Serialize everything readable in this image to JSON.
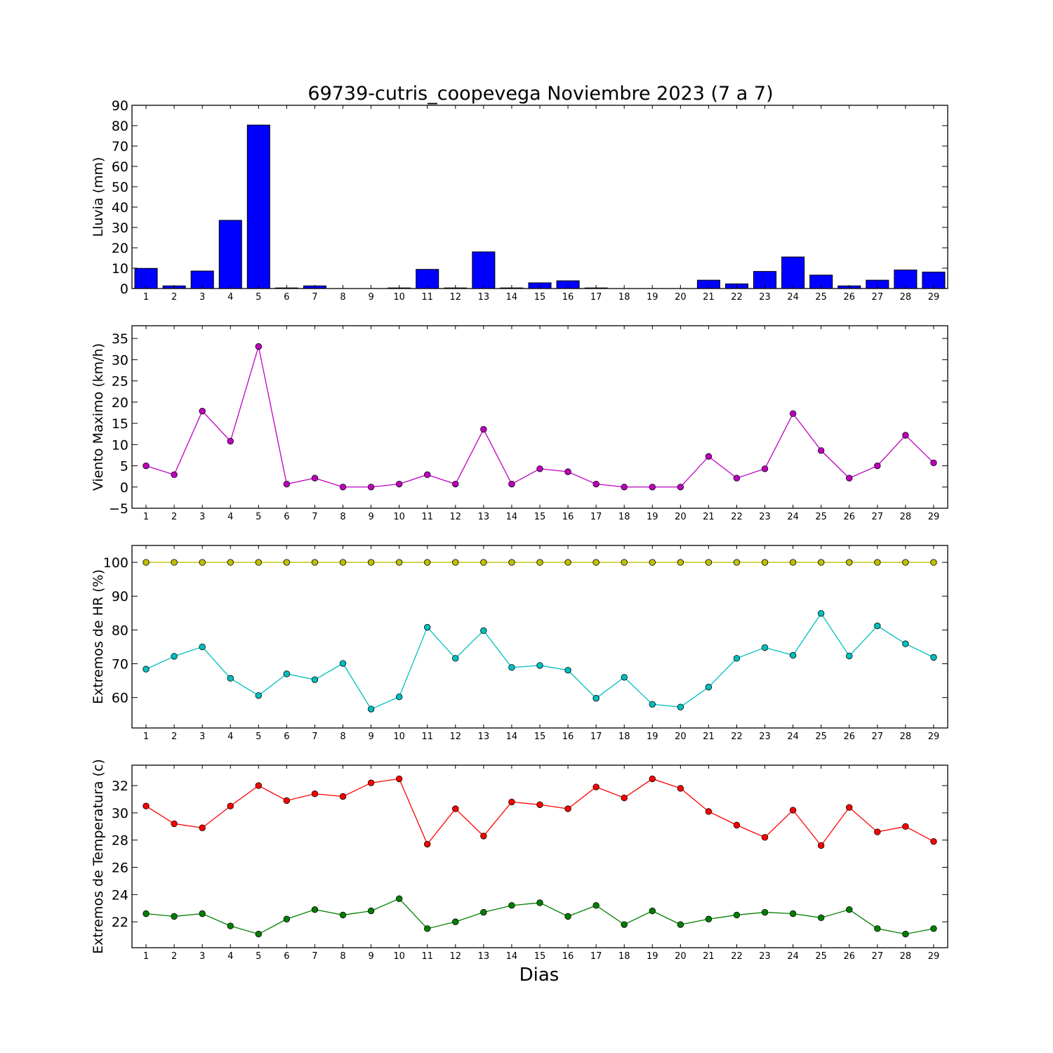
{
  "title": "69739-cutris_coopevega Noviembre 2023  (7 a 7)",
  "xlabel": "Dias",
  "colors": {
    "rain": "#0000ff",
    "wind": "#bf00bf",
    "hr_max": "#bfbf00",
    "hr_min": "#00bfbf",
    "temp_max": "#ff0000",
    "temp_min": "#008000"
  },
  "chart_data": [
    {
      "type": "bar",
      "ylabel": "Lluvia (mm)",
      "ylim": [
        0,
        90
      ],
      "yticks": [
        0,
        10,
        20,
        30,
        40,
        50,
        60,
        70,
        80,
        90
      ],
      "x": [
        1,
        2,
        3,
        4,
        5,
        6,
        7,
        8,
        9,
        10,
        11,
        12,
        13,
        14,
        15,
        16,
        17,
        18,
        19,
        20,
        21,
        22,
        23,
        24,
        25,
        26,
        27,
        28,
        29
      ],
      "series": [
        {
          "values": [
            9.9,
            1.3,
            8.6,
            33.5,
            80.3,
            0.3,
            1.3,
            0,
            0,
            0.3,
            9.4,
            0.3,
            18.0,
            0.3,
            2.8,
            3.8,
            0.3,
            0,
            0,
            0,
            4.1,
            2.3,
            8.4,
            15.5,
            6.6,
            1.3,
            4.1,
            9.1,
            8.1
          ]
        }
      ]
    },
    {
      "type": "line",
      "ylabel": "Viento Maximo (km/h)",
      "ylim": [
        -5,
        38
      ],
      "yticks": [
        -5,
        0,
        5,
        10,
        15,
        20,
        25,
        30,
        35
      ],
      "x": [
        1,
        2,
        3,
        4,
        5,
        6,
        7,
        8,
        9,
        10,
        11,
        12,
        13,
        14,
        15,
        16,
        17,
        18,
        19,
        20,
        21,
        22,
        23,
        24,
        25,
        26,
        27,
        28,
        29
      ],
      "series": [
        {
          "values": [
            5.0,
            2.9,
            17.9,
            10.8,
            33.1,
            0.7,
            2.1,
            0,
            0,
            0.7,
            2.9,
            0.7,
            13.6,
            0.7,
            4.3,
            3.6,
            0.7,
            0,
            0,
            0,
            7.2,
            2.1,
            4.3,
            17.3,
            8.6,
            2.1,
            5.0,
            12.2,
            5.7
          ]
        }
      ]
    },
    {
      "type": "line",
      "ylabel": "Extremos de HR (%)",
      "ylim": [
        51,
        105
      ],
      "yticks": [
        60,
        70,
        80,
        90,
        100
      ],
      "x": [
        1,
        2,
        3,
        4,
        5,
        6,
        7,
        8,
        9,
        10,
        11,
        12,
        13,
        14,
        15,
        16,
        17,
        18,
        19,
        20,
        21,
        22,
        23,
        24,
        25,
        26,
        27,
        28,
        29
      ],
      "series": [
        {
          "values": [
            100,
            100,
            100,
            100,
            100,
            100,
            100,
            100,
            100,
            100,
            100,
            100,
            100,
            100,
            100,
            100,
            100,
            100,
            100,
            100,
            100,
            100,
            100,
            100,
            100,
            100,
            100,
            100,
            100
          ]
        },
        {
          "values": [
            68.4,
            72.2,
            75.0,
            65.7,
            60.6,
            67.0,
            65.3,
            70.1,
            56.6,
            60.2,
            80.8,
            71.6,
            79.8,
            68.9,
            69.5,
            68.1,
            59.8,
            66.0,
            58.0,
            57.2,
            63.1,
            71.6,
            74.8,
            72.5,
            84.9,
            72.3,
            81.2,
            75.9,
            71.9
          ]
        }
      ]
    },
    {
      "type": "line",
      "ylabel": "Extremos de Temperatura (c)",
      "ylim": [
        20.1,
        33.5
      ],
      "yticks": [
        22,
        24,
        26,
        28,
        30,
        32
      ],
      "x": [
        1,
        2,
        3,
        4,
        5,
        6,
        7,
        8,
        9,
        10,
        11,
        12,
        13,
        14,
        15,
        16,
        17,
        18,
        19,
        20,
        21,
        22,
        23,
        24,
        25,
        26,
        27,
        28,
        29
      ],
      "series": [
        {
          "values": [
            30.5,
            29.2,
            28.9,
            30.5,
            32.0,
            30.9,
            31.4,
            31.2,
            32.2,
            32.5,
            27.7,
            30.3,
            28.3,
            30.8,
            30.6,
            30.3,
            31.9,
            31.1,
            32.5,
            31.8,
            30.1,
            29.1,
            28.2,
            30.2,
            27.6,
            30.4,
            28.6,
            29.0,
            27.9
          ]
        },
        {
          "values": [
            22.6,
            22.4,
            22.6,
            21.7,
            21.1,
            22.2,
            22.9,
            22.5,
            22.8,
            23.7,
            21.5,
            22.0,
            22.7,
            23.2,
            23.4,
            22.4,
            23.2,
            21.8,
            22.8,
            21.8,
            22.2,
            22.5,
            22.7,
            22.6,
            22.3,
            22.9,
            21.5,
            21.1,
            21.5
          ]
        }
      ]
    }
  ]
}
